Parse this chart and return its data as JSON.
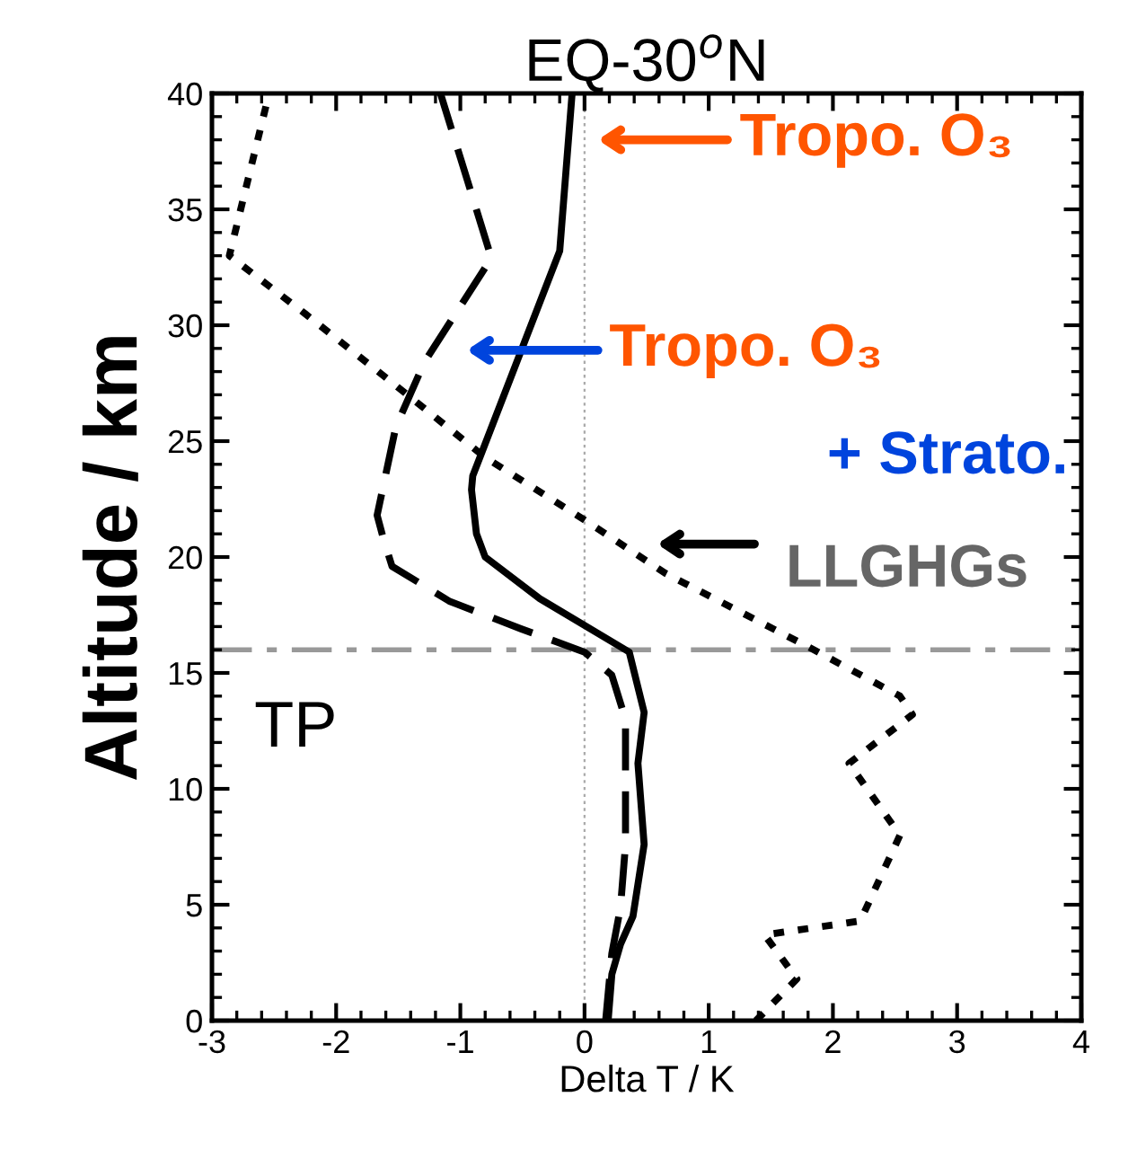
{
  "chart_data": {
    "type": "line",
    "title": "EQ-30$^{o}$N",
    "xlabel": "Delta T / K",
    "ylabel": "Altitude / km",
    "xlim": [
      -3,
      4
    ],
    "ylim": [
      0,
      40
    ],
    "xticks": [
      -3,
      -2,
      -1,
      0,
      1,
      2,
      3,
      4
    ],
    "yticks": [
      0,
      5,
      10,
      15,
      20,
      25,
      30,
      35,
      40
    ],
    "grid": false,
    "marker": "none",
    "series": [
      {
        "color": "#000000",
        "line_style": "solid",
        "x": [
          0.19,
          0.22,
          0.29,
          0.39,
          0.48,
          0.43,
          0.48,
          0.36,
          -0.36,
          -0.8,
          -0.87,
          -0.91,
          -0.9,
          -0.2,
          -0.1
        ],
        "values": [
          0,
          2,
          3.3,
          4.5,
          7.6,
          11.1,
          13.3,
          15.9,
          18.2,
          20,
          21,
          22.9,
          23.5,
          33.2,
          40
        ]
      },
      {
        "color": "#000000",
        "line_style": "dashed",
        "x": [
          0.17,
          0.22,
          0.29,
          0.33,
          0.33,
          0.33,
          0.22,
          0,
          -0.51,
          -1.09,
          -1.55,
          -1.62,
          -1.67,
          -1.52,
          -1.29,
          -0.75,
          -1.16
        ],
        "values": [
          0,
          2.9,
          4.9,
          7.6,
          11.1,
          13,
          14.9,
          15.9,
          16.9,
          18.1,
          19.6,
          20.8,
          21.8,
          25.6,
          28.4,
          32.9,
          40
        ]
      },
      {
        "color": "#000000",
        "line_style": "dotted",
        "x": [
          1.38,
          1.71,
          1.45,
          2.22,
          2.54,
          2.13,
          2.64,
          2.54,
          1.81,
          0.65,
          0,
          -0.8,
          -1.52,
          -2.25,
          -2.86,
          -2.54
        ],
        "values": [
          0,
          1.8,
          3.7,
          4.3,
          8,
          11.1,
          13.2,
          14,
          16.1,
          19.3,
          21.6,
          24.3,
          27.4,
          30.5,
          33,
          40
        ]
      }
    ],
    "ref_lines": [
      {
        "axis": "y",
        "value": 16,
        "label": "TP",
        "color": "#999999",
        "line_style": "dashdot"
      },
      {
        "axis": "x",
        "value": 0,
        "color": "#aaaaaa",
        "line_style": "dotted"
      }
    ],
    "annotations": [
      "Tropo. O₃",
      "Tropo. O₃",
      "+ Strato.",
      "LLGHGs"
    ]
  }
}
